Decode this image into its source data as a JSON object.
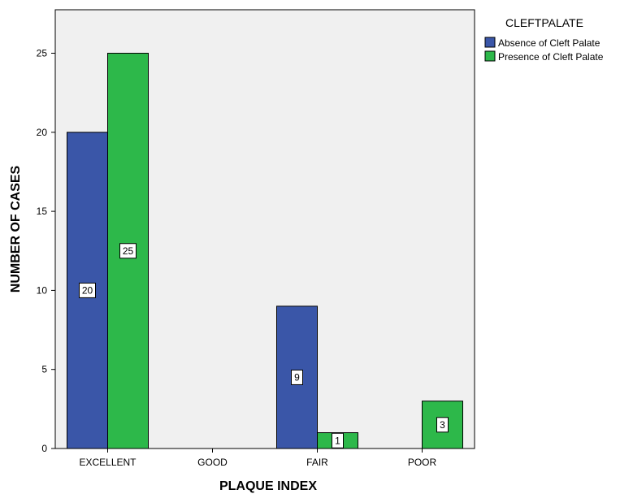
{
  "chart_data": {
    "type": "bar",
    "title": "",
    "xlabel": "PLAQUE INDEX",
    "ylabel": "NUMBER OF CASES",
    "categories": [
      "EXCELLENT",
      "GOOD",
      "FAIR",
      "POOR"
    ],
    "series": [
      {
        "name": "Absence of Cleft Palate",
        "color": "#3a56a8",
        "values": [
          20,
          0,
          9,
          0
        ]
      },
      {
        "name": "Presence of Cleft Palate",
        "color": "#2db84a",
        "values": [
          25,
          0,
          1,
          3
        ]
      }
    ],
    "ylim": [
      0,
      27.75
    ],
    "yticks": [
      "0",
      "5",
      "10",
      "15",
      "20",
      "25"
    ],
    "legend_title": "CLEFTPALATE",
    "legend_position": "top-right",
    "plot_background": "#f0f0f0",
    "grid": false
  }
}
